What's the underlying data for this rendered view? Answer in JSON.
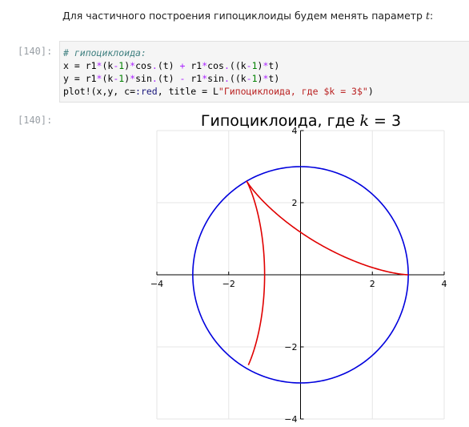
{
  "markdown": {
    "text_before": "Для частичного построения гипоциклоиды будем менять параметр ",
    "param": "t",
    "text_after": ":"
  },
  "input_cell": {
    "prompt": "[140]:",
    "lines": [
      [
        {
          "t": "# гипоциклоида:",
          "c": "comment"
        }
      ],
      [
        {
          "t": "x = r1",
          "c": ""
        },
        {
          "t": "*",
          "c": "op"
        },
        {
          "t": "(k",
          "c": ""
        },
        {
          "t": "-",
          "c": "op"
        },
        {
          "t": "1",
          "c": "num"
        },
        {
          "t": ")",
          "c": ""
        },
        {
          "t": "*",
          "c": "op"
        },
        {
          "t": "cos",
          "c": ""
        },
        {
          "t": ".",
          "c": "op"
        },
        {
          "t": "(t) ",
          "c": ""
        },
        {
          "t": "+",
          "c": "op"
        },
        {
          "t": " r1",
          "c": ""
        },
        {
          "t": "*",
          "c": "op"
        },
        {
          "t": "cos",
          "c": ""
        },
        {
          "t": ".",
          "c": "op"
        },
        {
          "t": "((k",
          "c": ""
        },
        {
          "t": "-",
          "c": "op"
        },
        {
          "t": "1",
          "c": "num"
        },
        {
          "t": ")",
          "c": ""
        },
        {
          "t": "*",
          "c": "op"
        },
        {
          "t": "t)",
          "c": ""
        }
      ],
      [
        {
          "t": "y = r1",
          "c": ""
        },
        {
          "t": "*",
          "c": "op"
        },
        {
          "t": "(k",
          "c": ""
        },
        {
          "t": "-",
          "c": "op"
        },
        {
          "t": "1",
          "c": "num"
        },
        {
          "t": ")",
          "c": ""
        },
        {
          "t": "*",
          "c": "op"
        },
        {
          "t": "sin",
          "c": ""
        },
        {
          "t": ".",
          "c": "op"
        },
        {
          "t": "(t) ",
          "c": ""
        },
        {
          "t": "-",
          "c": "op"
        },
        {
          "t": " r1",
          "c": ""
        },
        {
          "t": "*",
          "c": "op"
        },
        {
          "t": "sin",
          "c": ""
        },
        {
          "t": ".",
          "c": "op"
        },
        {
          "t": "((k",
          "c": ""
        },
        {
          "t": "-",
          "c": "op"
        },
        {
          "t": "1",
          "c": "num"
        },
        {
          "t": ")",
          "c": ""
        },
        {
          "t": "*",
          "c": "op"
        },
        {
          "t": "t)",
          "c": ""
        }
      ],
      [
        {
          "t": "plot!(x,y, c=",
          "c": ""
        },
        {
          "t": ":red",
          "c": "sym"
        },
        {
          "t": ", title = L",
          "c": ""
        },
        {
          "t": "\"Гипоциклоида, где $k = 3$\"",
          "c": "str"
        },
        {
          "t": ")",
          "c": ""
        }
      ]
    ]
  },
  "output_cell": {
    "prompt": "[140]:"
  },
  "chart_data": {
    "type": "line",
    "title": "Гипоциклоида, где k = 3",
    "title_prefix": "Гипоциклоида, где ",
    "title_var": "k",
    "title_suffix": " = 3",
    "xlim": [
      -4,
      4
    ],
    "ylim": [
      -4,
      4
    ],
    "xticks": [
      -4,
      -2,
      0,
      2,
      4
    ],
    "yticks": [
      -4,
      -2,
      0,
      2,
      4
    ],
    "xtick_labels": [
      "−4",
      "−2",
      "",
      "2",
      "4"
    ],
    "ytick_labels": [
      "−4",
      "−2",
      "",
      "2",
      "4"
    ],
    "grid": true,
    "legend": "none",
    "series": [
      {
        "color": "#0000dd",
        "shape": "circle",
        "center": [
          0,
          0
        ],
        "radius": 3
      },
      {
        "color": "#e00000",
        "shape": "hypocycloid",
        "k": 3,
        "r1": 1,
        "t_range": [
          0,
          4.0
        ]
      }
    ]
  }
}
